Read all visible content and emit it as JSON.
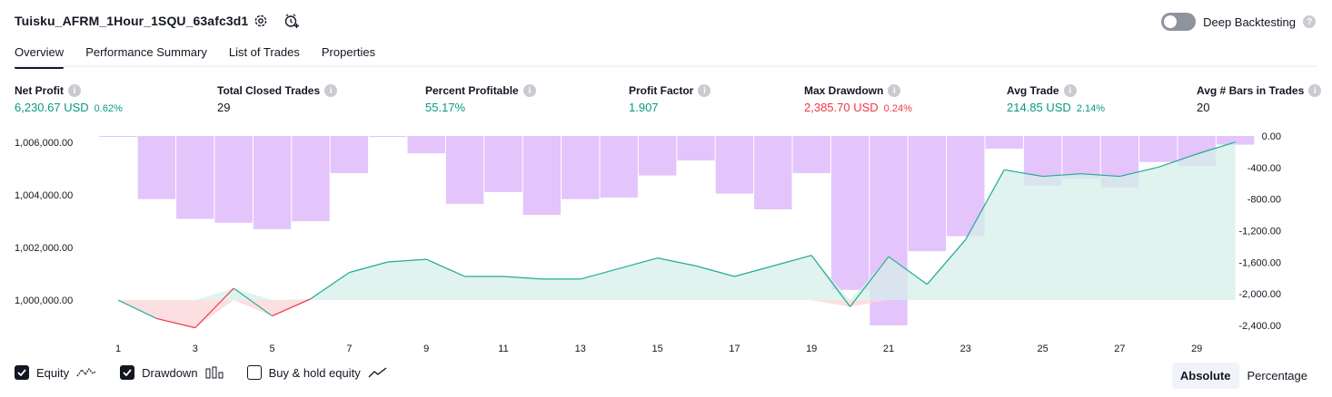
{
  "header": {
    "strategy_title": "Tuisku_AFRM_1Hour_1SQU_63afc3d1",
    "settings_icon": "gear-icon",
    "alert_icon": "alarm-clock-plus-icon",
    "deep_backtesting_label": "Deep Backtesting",
    "deep_backtesting_enabled": false,
    "help_mark": "?"
  },
  "tabs": [
    {
      "label": "Overview",
      "active": true
    },
    {
      "label": "Performance Summary",
      "active": false
    },
    {
      "label": "List of Trades",
      "active": false
    },
    {
      "label": "Properties",
      "active": false
    }
  ],
  "metrics": [
    {
      "label": "Net Profit",
      "value": "6,230.67 USD",
      "pct": "0.62%",
      "color": "green"
    },
    {
      "label": "Total Closed Trades",
      "value": "29",
      "pct": "",
      "color": "black"
    },
    {
      "label": "Percent Profitable",
      "value": "55.17%",
      "pct": "",
      "color": "green"
    },
    {
      "label": "Profit Factor",
      "value": "1.907",
      "pct": "",
      "color": "green"
    },
    {
      "label": "Max Drawdown",
      "value": "2,385.70 USD",
      "pct": "0.24%",
      "color": "red"
    },
    {
      "label": "Avg Trade",
      "value": "214.85 USD",
      "pct": "2.14%",
      "color": "green"
    },
    {
      "label": "Avg # Bars in Trades",
      "value": "20",
      "pct": "",
      "color": "black"
    }
  ],
  "chart_data": {
    "type": "line",
    "series": [
      {
        "name": "Equity",
        "x": [
          1,
          2,
          3,
          4,
          5,
          6,
          7,
          8,
          9,
          10,
          11,
          12,
          13,
          14,
          15,
          16,
          17,
          18,
          19,
          20,
          21,
          22,
          23,
          24,
          25,
          26,
          27,
          28,
          29,
          30
        ],
        "values": [
          1000000,
          999300,
          998950,
          1000450,
          999400,
          1000050,
          1001050,
          1001450,
          1001550,
          1000900,
          1000900,
          1000800,
          1000800,
          1001200,
          1001600,
          1001300,
          1000900,
          1001300,
          1001700,
          999750,
          1001650,
          1000600,
          1002300,
          1004950,
          1004700,
          1004800,
          1004700,
          1005050,
          1005550,
          1006000
        ]
      },
      {
        "name": "Drawdown",
        "x": [
          1,
          2,
          3,
          4,
          5,
          6,
          7,
          8,
          9,
          10,
          11,
          12,
          13,
          14,
          15,
          16,
          17,
          18,
          19,
          20,
          21,
          22,
          23,
          24,
          25,
          26,
          27,
          28,
          29,
          30
        ],
        "values": [
          0,
          -800,
          -1050,
          -1100,
          -1180,
          -1080,
          -470,
          0,
          -220,
          -860,
          -710,
          -1000,
          -800,
          -780,
          -500,
          -310,
          -730,
          -930,
          -470,
          -1950,
          -2400,
          -1460,
          -1270,
          -160,
          -630,
          -540,
          -650,
          -330,
          -380,
          -110
        ]
      }
    ],
    "y_left": {
      "ticks": [
        "1,006,000.00",
        "1,004,000.00",
        "1,002,000.00",
        "1,000,000.00"
      ],
      "ylim": [
        998800,
        1006200
      ]
    },
    "y_right": {
      "ticks": [
        "0.00",
        "-400.00",
        "-800.00",
        "-1,200.00",
        "-1,600.00",
        "-2,000.00",
        "-2,400.00"
      ],
      "ylim": [
        -2400,
        0
      ]
    },
    "x_ticks": [
      "1",
      "3",
      "5",
      "7",
      "9",
      "11",
      "13",
      "15",
      "17",
      "19",
      "21",
      "23",
      "25",
      "27",
      "29"
    ],
    "colors": {
      "equity_up": "#22ab94",
      "equity_down": "#f23645",
      "equity_fill": "#d5efe9",
      "drawdown_bar": "#e1c1fb",
      "overlap_line": "#2962ff"
    },
    "grid": false
  },
  "legend": [
    {
      "label": "Equity",
      "checked": true,
      "icon": "equity-line-icon"
    },
    {
      "label": "Drawdown",
      "checked": true,
      "icon": "drawdown-bars-icon"
    },
    {
      "label": "Buy & hold equity",
      "checked": false,
      "icon": "buy-hold-line-icon"
    }
  ],
  "view_mode": {
    "options": [
      "Absolute",
      "Percentage"
    ],
    "selected": "Absolute"
  }
}
